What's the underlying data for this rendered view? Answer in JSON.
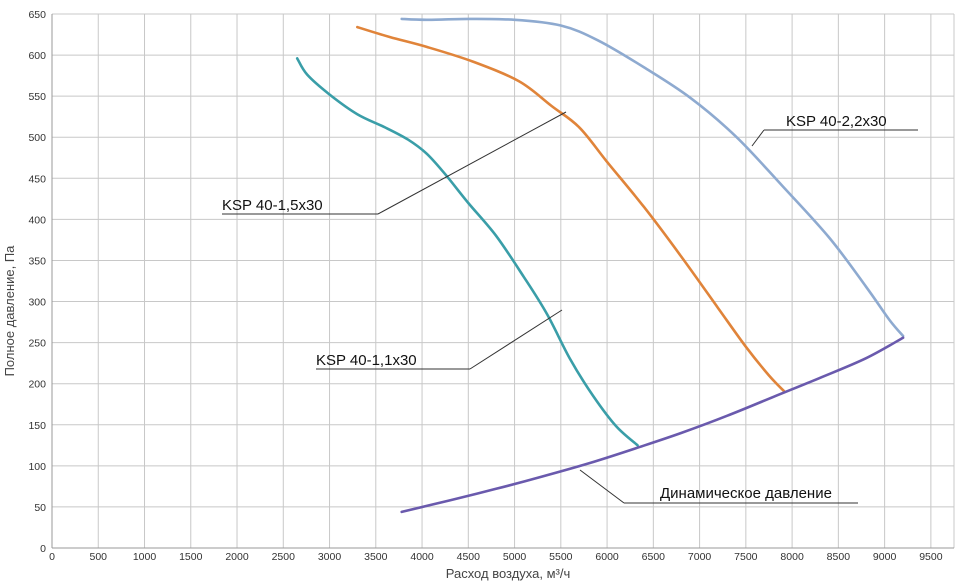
{
  "chart_data": {
    "type": "line",
    "xlabel": "Расход воздуха, м³/ч",
    "ylabel": "Полное давление, Па",
    "xlim": [
      0,
      9750
    ],
    "ylim": [
      0,
      650
    ],
    "x_ticks": [
      0,
      500,
      1000,
      1500,
      2000,
      2500,
      3000,
      3500,
      4000,
      4500,
      5000,
      5500,
      6000,
      6500,
      7000,
      7500,
      8000,
      8500,
      9000,
      9500
    ],
    "y_ticks": [
      0,
      50,
      100,
      150,
      200,
      250,
      300,
      350,
      400,
      450,
      500,
      550,
      600,
      650
    ],
    "grid": true,
    "series": [
      {
        "name": "KSP 40-1,1x30",
        "color": "#3a9ea8",
        "points": [
          [
            2650,
            596
          ],
          [
            2760,
            576
          ],
          [
            3000,
            552
          ],
          [
            3300,
            528
          ],
          [
            3600,
            512
          ],
          [
            3850,
            497
          ],
          [
            4050,
            480
          ],
          [
            4250,
            455
          ],
          [
            4500,
            420
          ],
          [
            4800,
            380
          ],
          [
            5100,
            330
          ],
          [
            5350,
            285
          ],
          [
            5600,
            230
          ],
          [
            5850,
            185
          ],
          [
            6100,
            148
          ],
          [
            6330,
            125
          ]
        ]
      },
      {
        "name": "KSP 40-1,5x30",
        "color": "#e0843a",
        "points": [
          [
            3300,
            634
          ],
          [
            3650,
            622
          ],
          [
            4050,
            610
          ],
          [
            4550,
            592
          ],
          [
            5050,
            568
          ],
          [
            5400,
            538
          ],
          [
            5700,
            512
          ],
          [
            6000,
            470
          ],
          [
            6400,
            415
          ],
          [
            6800,
            355
          ],
          [
            7200,
            292
          ],
          [
            7500,
            245
          ],
          [
            7750,
            210
          ],
          [
            7920,
            190
          ]
        ]
      },
      {
        "name": "KSP 40-2,2x30",
        "color": "#8eaad0",
        "points": [
          [
            3780,
            644
          ],
          [
            4050,
            643
          ],
          [
            4500,
            644
          ],
          [
            5000,
            643
          ],
          [
            5500,
            636
          ],
          [
            5900,
            618
          ],
          [
            6400,
            585
          ],
          [
            6900,
            548
          ],
          [
            7400,
            500
          ],
          [
            7900,
            440
          ],
          [
            8400,
            378
          ],
          [
            8800,
            318
          ],
          [
            9050,
            278
          ],
          [
            9200,
            258
          ]
        ]
      },
      {
        "name": "Динамическое давление",
        "color": "#6a5aad",
        "points": [
          [
            3780,
            44
          ],
          [
            4300,
            58
          ],
          [
            4800,
            72
          ],
          [
            5300,
            87
          ],
          [
            5800,
            103
          ],
          [
            6300,
            121
          ],
          [
            6800,
            140
          ],
          [
            7300,
            161
          ],
          [
            7800,
            184
          ],
          [
            8300,
            207
          ],
          [
            8800,
            231
          ],
          [
            9200,
            256
          ]
        ]
      }
    ],
    "annotations": [
      {
        "text": "KSP 40-1,5x30",
        "series": "KSP 40-1,5x30"
      },
      {
        "text": "KSP 40-1,1x30",
        "series": "KSP 40-1,1x30"
      },
      {
        "text": "KSP 40-2,2x30",
        "series": "KSP 40-2,2x30"
      },
      {
        "text": "Динамическое давление",
        "series": "Динамическое давление"
      }
    ]
  }
}
